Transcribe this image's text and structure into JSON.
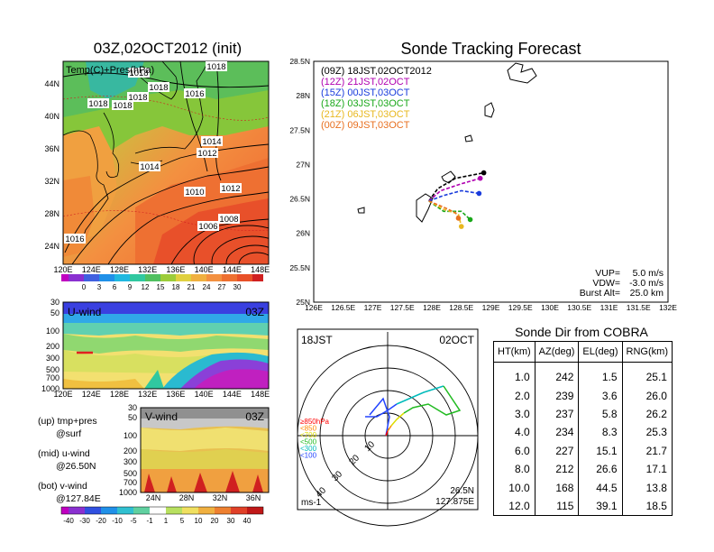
{
  "left_panel": {
    "title": "03Z,02OCT2012 (init)",
    "overlay_label": "Temp(C)+Pres(hPa)",
    "x_ticks": [
      "120E",
      "124E",
      "128E",
      "132E",
      "136E",
      "140E",
      "144E",
      "148E"
    ],
    "y_ticks": [
      "24N",
      "28N",
      "32N",
      "36N",
      "40N",
      "44N"
    ],
    "isobar_labels": [
      "1018",
      "1018",
      "1018",
      "1018",
      "1018",
      "1016",
      "1018",
      "1014",
      "1012",
      "1014",
      "1010",
      "1012",
      "1008",
      "1006",
      "1016"
    ],
    "colorbar_ticks": [
      "0",
      "3",
      "6",
      "9",
      "12",
      "15",
      "18",
      "21",
      "24",
      "27",
      "30"
    ],
    "colors": {
      "ocean_hot": "#e8502a",
      "warm": "#f39040",
      "green": "#8ccc3a",
      "cool": "#45c06a"
    }
  },
  "u_panel": {
    "label": "U-wind",
    "time": "03Z",
    "y_ticks": [
      "30",
      "50",
      "100",
      "200",
      "300",
      "500",
      "700",
      "1000"
    ],
    "x_ticks": [
      "120E",
      "124E",
      "128E",
      "132E",
      "136E",
      "140E",
      "144E",
      "148E"
    ]
  },
  "v_panel": {
    "label": "V-wind",
    "time": "03Z",
    "y_ticks": [
      "30",
      "50",
      "100",
      "200",
      "300",
      "500",
      "700",
      "1000"
    ],
    "x_ticks": [
      "24N",
      "28N",
      "32N",
      "36N"
    ]
  },
  "notes": [
    {
      "line1": "(up) tmp+pres",
      "line2": "@surf"
    },
    {
      "line1": "(mid) u-wind",
      "line2": "@26.50N"
    },
    {
      "line1": "(bot) v-wind",
      "line2": "@127.84E"
    }
  ],
  "wind_colorbar_ticks": [
    "-40",
    "-30",
    "-20",
    "-10",
    "-5",
    "-1",
    "1",
    "5",
    "10",
    "20",
    "30",
    "40"
  ],
  "tracking": {
    "title": "Sonde Tracking Forecast",
    "x_ticks": [
      "126E",
      "126.5E",
      "127E",
      "127.5E",
      "128E",
      "128.5E",
      "129E",
      "129.5E",
      "130E",
      "130.5E",
      "131E",
      "131.5E",
      "132E"
    ],
    "y_ticks": [
      "25N",
      "25.5N",
      "26N",
      "26.5N",
      "27N",
      "27.5N",
      "28N",
      "28.5N"
    ],
    "legend": [
      {
        "text": "(09Z)  18JST,02OCT2012",
        "color": "#000000"
      },
      {
        "text": "(12Z)  21JST,02OCT",
        "color": "#b000b0"
      },
      {
        "text": "(15Z)  00JST,03OCT",
        "color": "#1a3cdc"
      },
      {
        "text": "(18Z)  03JST,03OCT",
        "color": "#1aa81a"
      },
      {
        "text": "(21Z)  06JST,03OCT",
        "color": "#e8b820"
      },
      {
        "text": "(00Z)  09JST,03OCT",
        "color": "#e87020"
      }
    ],
    "params": [
      {
        "label": "VUP=",
        "value": "5.0  m/s"
      },
      {
        "label": "VDW=",
        "value": "-3.0  m/s"
      },
      {
        "label": "Burst Alt=",
        "value": "25.0  km"
      }
    ]
  },
  "polar": {
    "time_left": "18JST",
    "time_right": "02OCT",
    "bottom_left": "ms-1",
    "coord_lat": "26.5N",
    "coord_lon": "127.875E",
    "ring_labels": [
      "10",
      "20",
      "30",
      "40"
    ],
    "levels": [
      {
        "text": "≥850hPa",
        "color": "#ff0000"
      },
      {
        "text": "<850",
        "color": "#ff8800"
      },
      {
        "text": "<700",
        "color": "#dddd00"
      },
      {
        "text": "<500",
        "color": "#22bb22"
      },
      {
        "text": "<300",
        "color": "#00bbbb"
      },
      {
        "text": "<100",
        "color": "#2244ff"
      }
    ]
  },
  "sonde_table": {
    "title": "Sonde Dir from COBRA",
    "headers": [
      "HT(km)",
      "AZ(deg)",
      "EL(deg)",
      "RNG(km)"
    ],
    "rows": [
      [
        "1.0",
        "242",
        "1.5",
        "25.1"
      ],
      [
        "2.0",
        "239",
        "3.6",
        "26.0"
      ],
      [
        "3.0",
        "237",
        "5.8",
        "26.2"
      ],
      [
        "4.0",
        "234",
        "8.3",
        "25.3"
      ],
      [
        "6.0",
        "227",
        "15.1",
        "21.7"
      ],
      [
        "8.0",
        "212",
        "26.6",
        "17.1"
      ],
      [
        "10.0",
        "168",
        "44.5",
        "13.8"
      ],
      [
        "12.0",
        "115",
        "39.1",
        "18.5"
      ]
    ]
  },
  "chart_data": [
    {
      "type": "line",
      "title": "Sonde Tracking Forecast",
      "xlim": [
        126,
        132
      ],
      "ylim": [
        25,
        28.5
      ],
      "series": [
        {
          "name": "(09Z)  18JST,02OCT2012",
          "x": [
            127.95,
            128.1,
            128.4,
            128.88
          ],
          "y": [
            26.47,
            26.65,
            26.8,
            26.88
          ]
        },
        {
          "name": "(12Z)  21JST,02OCT",
          "x": [
            127.95,
            128.15,
            128.5,
            128.82
          ],
          "y": [
            26.47,
            26.62,
            26.72,
            26.8
          ]
        },
        {
          "name": "(15Z)  00JST,03OCT",
          "x": [
            127.95,
            128.2,
            128.5,
            128.8
          ],
          "y": [
            26.47,
            26.55,
            26.62,
            26.58
          ]
        },
        {
          "name": "(18Z)  03JST,03OCT",
          "x": [
            127.95,
            128.2,
            128.5,
            128.65
          ],
          "y": [
            26.47,
            26.32,
            26.32,
            26.2
          ]
        },
        {
          "name": "(21Z)  06JST,03OCT",
          "x": [
            127.95,
            128.2,
            128.45,
            128.5
          ],
          "y": [
            26.47,
            26.35,
            26.28,
            26.1
          ]
        },
        {
          "name": "(00Z)  09JST,03OCT",
          "x": [
            127.95,
            128.2,
            128.4,
            128.45
          ],
          "y": [
            26.47,
            26.38,
            26.3,
            26.22
          ]
        }
      ]
    },
    {
      "type": "table",
      "title": "Sonde Dir from COBRA",
      "columns": [
        "HT(km)",
        "AZ(deg)",
        "EL(deg)",
        "RNG(km)"
      ],
      "rows": [
        [
          1.0,
          242,
          1.5,
          25.1
        ],
        [
          2.0,
          239,
          3.6,
          26.0
        ],
        [
          3.0,
          237,
          5.8,
          26.2
        ],
        [
          4.0,
          234,
          8.3,
          25.3
        ],
        [
          6.0,
          227,
          15.1,
          21.7
        ],
        [
          8.0,
          212,
          26.6,
          17.1
        ],
        [
          10.0,
          168,
          44.5,
          13.8
        ],
        [
          12.0,
          115,
          39.1,
          18.5
        ]
      ]
    }
  ]
}
